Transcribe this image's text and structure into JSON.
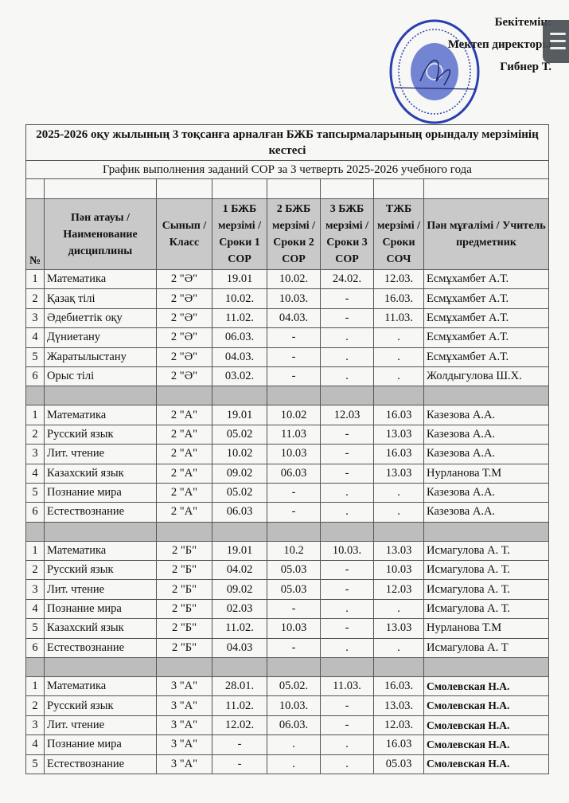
{
  "approval": {
    "line1": "Бекітемін:",
    "line2": "Мектеп директоры",
    "line3": "Гибнер Т."
  },
  "title_kz": "2025-2026 оқу жылының 3 тоқсанға арналған БЖБ тапсырмаларының орындалу мерзімінің кестесі",
  "title_ru": "График выполнения заданий СОР за 3 четверть 2025-2026 учебного года",
  "headers": {
    "num": "№",
    "subject": "Пән атауы / Наименование дисциплины",
    "class": "Сынып / Класс",
    "sor1": "1 БЖБ мерзімі / Сроки 1 СОР",
    "sor2": "2 БЖБ мерзімі / Сроки 2 СОР",
    "sor3": "3 БЖБ мерзімі / Сроки 3 СОР",
    "soch": "ТЖБ мерзімі / Сроки СОЧ",
    "teacher": "Пән мұғалімі / Учитель предметник"
  },
  "sections": [
    {
      "rows": [
        [
          "1",
          "Математика",
          "2 \"Ә\"",
          "19.01",
          "10.02.",
          "24.02.",
          "12.03.",
          "Есмұхамбет А.Т."
        ],
        [
          "2",
          "Қазақ тілі",
          "2 \"Ә\"",
          "10.02.",
          "10.03.",
          "-",
          "16.03.",
          "Есмұхамбет А.Т."
        ],
        [
          "3",
          "Әдебиеттік оқу",
          "2 \"Ә\"",
          "11.02.",
          "04.03.",
          "-",
          "11.03.",
          "Есмұхамбет А.Т."
        ],
        [
          "4",
          "Дүниетану",
          "2 \"Ә\"",
          "06.03.",
          "-",
          ".",
          ".",
          "Есмұхамбет А.Т."
        ],
        [
          "5",
          "Жаратылыстану",
          "2 \"Ә\"",
          "04.03.",
          "-",
          ".",
          ".",
          "Есмұхамбет А.Т."
        ],
        [
          "6",
          "Орыс тілі",
          "2 \"Ә\"",
          "03.02.",
          "-",
          ".",
          ".",
          "Жолдыгулова Ш.Х."
        ]
      ]
    },
    {
      "rows": [
        [
          "1",
          "Математика",
          "2 \"А\"",
          "19.01",
          "10.02",
          "12.03",
          "16.03",
          "Казезова А.А."
        ],
        [
          "2",
          "Русский язык",
          "2 \"А\"",
          "05.02",
          "11.03",
          "-",
          "13.03",
          "Казезова А.А."
        ],
        [
          "3",
          "Лит. чтение",
          "2 \"А\"",
          "10.02",
          "10.03",
          "-",
          "16.03",
          "Казезова А.А."
        ],
        [
          "4",
          "Казахский язык",
          "2 \"А\"",
          "09.02",
          "06.03",
          "-",
          "13.03",
          "Нурланова Т.М"
        ],
        [
          "5",
          "Познание мира",
          "2 \"А\"",
          "05.02",
          "-",
          ".",
          ".",
          "Казезова А.А."
        ],
        [
          "6",
          "Естествознание",
          "2 \"А\"",
          "06.03",
          "-",
          ".",
          ".",
          "Казезова А.А."
        ]
      ]
    },
    {
      "rows": [
        [
          "1",
          "Математика",
          "2 \"Б\"",
          "19.01",
          "10.2",
          "10.03.",
          "13.03",
          "Исмагулова А. Т."
        ],
        [
          "2",
          "Русский язык",
          "2 \"Б\"",
          "04.02",
          "05.03",
          "-",
          "10.03",
          "Исмагулова А. Т."
        ],
        [
          "3",
          "Лит. чтение",
          "2 \"Б\"",
          "09.02",
          "05.03",
          "-",
          "12.03",
          "Исмагулова А. Т."
        ],
        [
          "4",
          "Познание мира",
          "2 \"Б\"",
          "02.03",
          "-",
          ".",
          ".",
          "Исмагулова А. Т."
        ],
        [
          "5",
          "Казахский язык",
          "2 \"Б\"",
          "11.02.",
          "10.03",
          "-",
          "13.03",
          "Нурланова Т.М"
        ],
        [
          "6",
          "Естествознание",
          "2 \"Б\"",
          "04.03",
          "-",
          ".",
          ".",
          "Исмагулова А. Т"
        ]
      ]
    },
    {
      "bold_teacher": true,
      "rows": [
        [
          "1",
          "Математика",
          "3 \"А\"",
          "28.01.",
          "05.02.",
          "11.03.",
          "16.03.",
          "Смолевская Н.А."
        ],
        [
          "2",
          "Русский язык",
          "3 \"А\"",
          "11.02.",
          "10.03.",
          "-",
          "13.03.",
          "Смолевская Н.А."
        ],
        [
          "3",
          "Лит. чтение",
          "3 \"А\"",
          "12.02.",
          "06.03.",
          "-",
          "12.03.",
          "Смолевская Н.А."
        ],
        [
          "4",
          "Познание мира",
          "3 \"А\"",
          "-",
          ".",
          ".",
          "16.03",
          "Смолевская Н.А."
        ],
        [
          "5",
          "Естествознание",
          "3 \"А\"",
          "-",
          ".",
          ".",
          "05.03",
          "Смолевская Н.А."
        ]
      ]
    }
  ],
  "colors": {
    "stamp": "#2a3fb0",
    "header_bg": "#c9c9c9",
    "separator_bg": "#bdbdbd"
  },
  "icons": {
    "menu": "hamburger-menu-icon",
    "stamp": "official-seal"
  }
}
